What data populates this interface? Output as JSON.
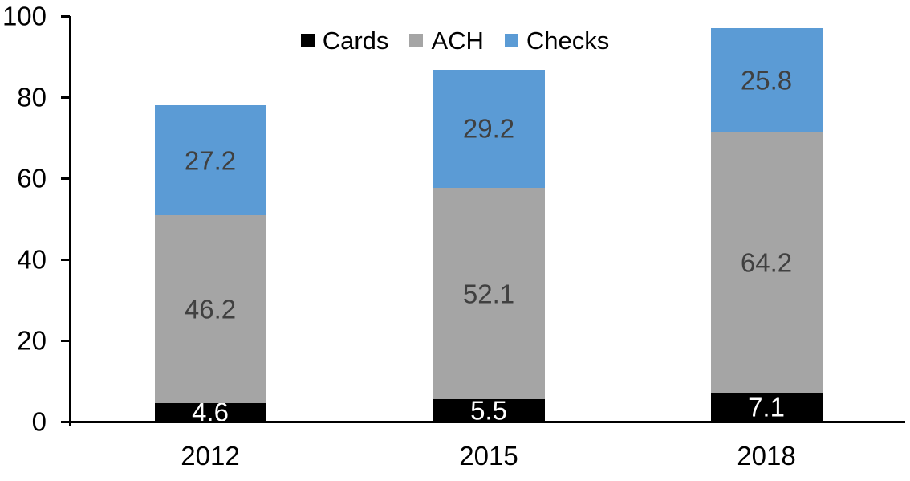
{
  "chart_data": {
    "type": "bar",
    "stacked": true,
    "title": "",
    "xlabel": "",
    "ylabel": "",
    "categories": [
      "2012",
      "2015",
      "2018"
    ],
    "series": [
      {
        "name": "Cards",
        "color": "#000000",
        "label_color": "#ffffff",
        "values": [
          4.6,
          5.5,
          7.1
        ]
      },
      {
        "name": "ACH",
        "color": "#a5a5a5",
        "label_color": "#404040",
        "values": [
          46.2,
          52.1,
          64.2
        ]
      },
      {
        "name": "Checks",
        "color": "#5b9bd5",
        "label_color": "#404040",
        "values": [
          27.2,
          29.2,
          25.8
        ]
      }
    ],
    "totals": [
      78.0,
      86.8,
      97.1
    ],
    "y_ticks": [
      0,
      20,
      40,
      60,
      80,
      100
    ],
    "ylim": [
      0,
      100
    ],
    "grid": false,
    "legend_position": "top-center",
    "value_labels": true,
    "value_labels_decimals": 1,
    "axis_color": "#000000"
  }
}
